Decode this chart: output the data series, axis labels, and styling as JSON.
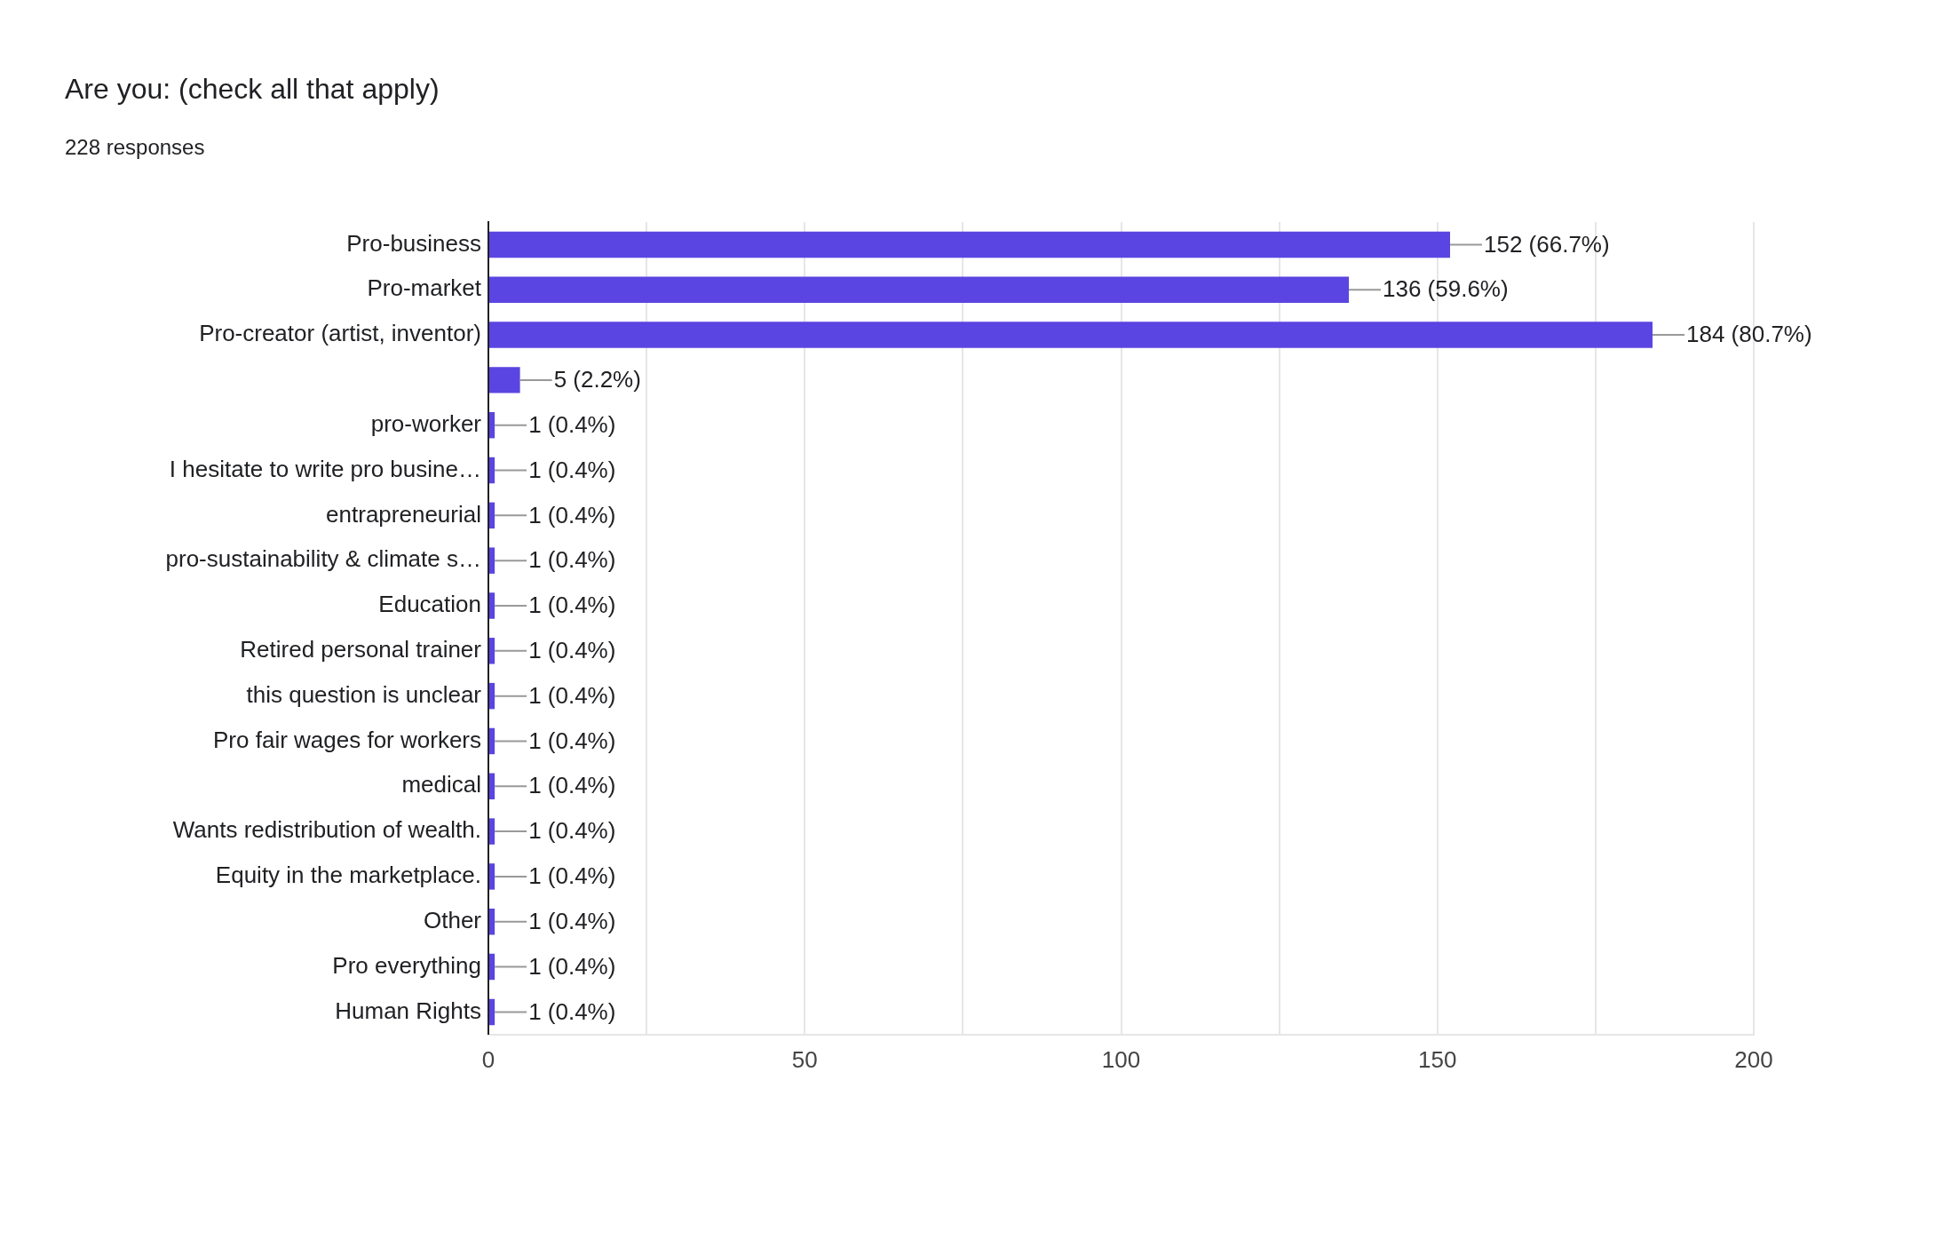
{
  "chart_data": {
    "type": "bar",
    "title": "Are you: (check all that apply)",
    "subtitle": "228 responses",
    "categories": [
      "Pro-business",
      "Pro-market",
      "Pro-creator (artist, inventor)",
      null,
      "pro-worker",
      "I hesitate to write pro busine…",
      "entrapreneurial",
      "pro-sustainability & climate s…",
      "Education",
      "Retired personal trainer",
      "this question is unclear",
      "Pro fair wages for workers",
      "medical",
      "Wants redistribution of wealth.",
      "Equity in the marketplace.",
      "Other",
      "Pro everything",
      "Human Rights"
    ],
    "values": [
      152,
      136,
      184,
      5,
      1,
      1,
      1,
      1,
      1,
      1,
      1,
      1,
      1,
      1,
      1,
      1,
      1,
      1
    ],
    "value_labels": [
      "152 (66.7%)",
      "136 (59.6%)",
      "184 (80.7%)",
      "5 (2.2%)",
      "1 (0.4%)",
      "1 (0.4%)",
      "1 (0.4%)",
      "1 (0.4%)",
      "1 (0.4%)",
      "1 (0.4%)",
      "1 (0.4%)",
      "1 (0.4%)",
      "1 (0.4%)",
      "1 (0.4%)",
      "1 (0.4%)",
      "1 (0.4%)",
      "1 (0.4%)",
      "1 (0.4%)"
    ],
    "color": "#5a45e2",
    "orientation": "horizontal",
    "xlim": [
      0,
      200
    ],
    "xticks": [
      0,
      {
        "value": 25,
        "label": null
      },
      50,
      {
        "value": 75,
        "label": null
      },
      100,
      {
        "value": 125,
        "label": null
      },
      150,
      {
        "value": 175,
        "label": null
      },
      200
    ],
    "grid": "x"
  }
}
